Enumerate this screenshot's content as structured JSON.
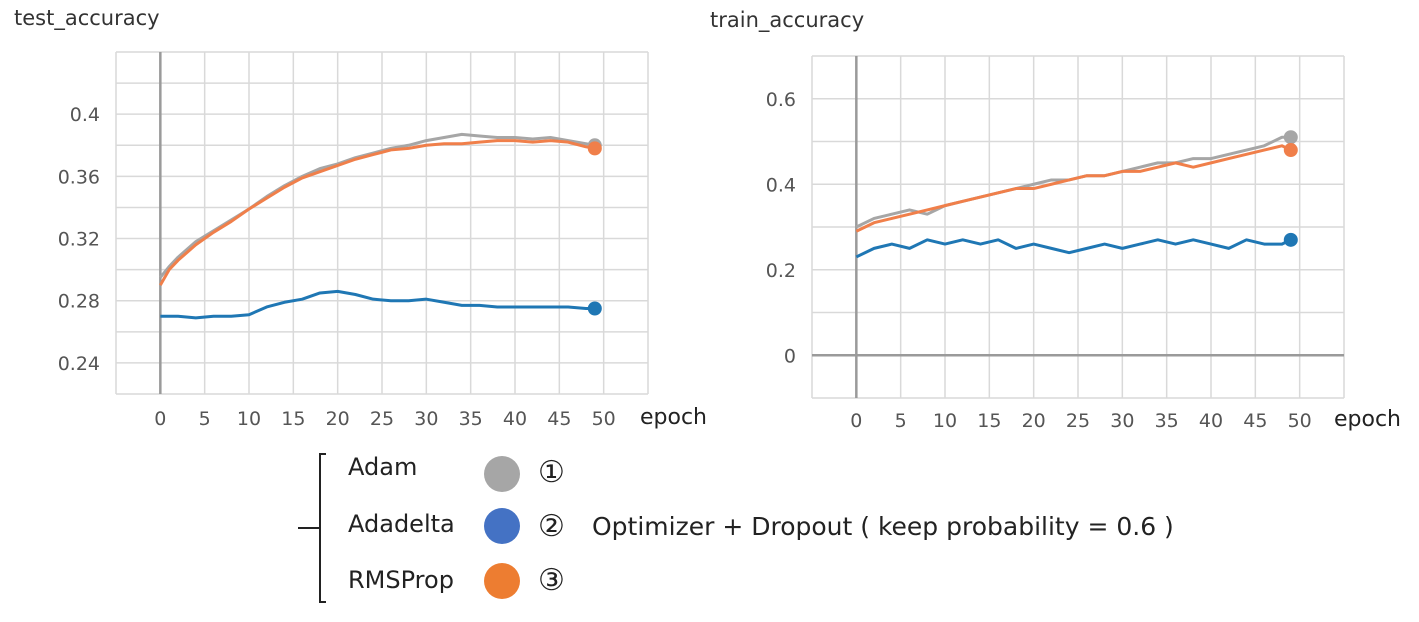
{
  "chart_data": [
    {
      "type": "line",
      "title": "test_accuracy",
      "xlabel": "epoch",
      "x_ticks": [
        0,
        5,
        10,
        15,
        20,
        25,
        30,
        35,
        40,
        45,
        50
      ],
      "y_ticks": [
        0.24,
        0.28,
        0.32,
        0.36,
        0.4
      ],
      "xlim": [
        -5,
        55
      ],
      "ylim": [
        0.22,
        0.44
      ],
      "x": [
        0,
        1,
        2,
        4,
        6,
        8,
        10,
        12,
        14,
        16,
        18,
        20,
        22,
        24,
        26,
        28,
        30,
        32,
        34,
        36,
        38,
        40,
        42,
        44,
        46,
        48,
        49
      ],
      "series": [
        {
          "name": "Adam",
          "color": "#a6a6a6",
          "values": [
            0.295,
            0.302,
            0.308,
            0.318,
            0.325,
            0.332,
            0.339,
            0.347,
            0.354,
            0.36,
            0.365,
            0.368,
            0.372,
            0.375,
            0.378,
            0.38,
            0.383,
            0.385,
            0.387,
            0.386,
            0.385,
            0.385,
            0.384,
            0.385,
            0.383,
            0.381,
            0.38
          ]
        },
        {
          "name": "Adadelta",
          "color": "#1f77b4",
          "values": [
            0.27,
            0.27,
            0.27,
            0.269,
            0.27,
            0.27,
            0.271,
            0.276,
            0.279,
            0.281,
            0.285,
            0.286,
            0.284,
            0.281,
            0.28,
            0.28,
            0.281,
            0.279,
            0.277,
            0.277,
            0.276,
            0.276,
            0.276,
            0.276,
            0.276,
            0.275,
            0.275
          ]
        },
        {
          "name": "RMSProp",
          "color": "#f07f4a",
          "values": [
            0.29,
            0.3,
            0.306,
            0.316,
            0.324,
            0.331,
            0.339,
            0.346,
            0.353,
            0.359,
            0.363,
            0.367,
            0.371,
            0.374,
            0.377,
            0.378,
            0.38,
            0.381,
            0.381,
            0.382,
            0.383,
            0.383,
            0.382,
            0.383,
            0.382,
            0.379,
            0.378
          ]
        }
      ]
    },
    {
      "type": "line",
      "title": "train_accuracy",
      "xlabel": "epoch",
      "x_ticks": [
        0,
        5,
        10,
        15,
        20,
        25,
        30,
        35,
        40,
        45,
        50
      ],
      "y_ticks": [
        0,
        0.2,
        0.4,
        0.6
      ],
      "xlim": [
        -5,
        55
      ],
      "ylim": [
        -0.1,
        0.7
      ],
      "x": [
        0,
        2,
        4,
        6,
        8,
        10,
        12,
        14,
        16,
        18,
        20,
        22,
        24,
        26,
        28,
        30,
        32,
        34,
        36,
        38,
        40,
        42,
        44,
        46,
        48,
        49
      ],
      "series": [
        {
          "name": "Adam",
          "color": "#a6a6a6",
          "values": [
            0.3,
            0.32,
            0.33,
            0.34,
            0.33,
            0.35,
            0.36,
            0.37,
            0.38,
            0.39,
            0.4,
            0.41,
            0.41,
            0.42,
            0.42,
            0.43,
            0.44,
            0.45,
            0.45,
            0.46,
            0.46,
            0.47,
            0.48,
            0.49,
            0.51,
            0.51
          ]
        },
        {
          "name": "Adadelta",
          "color": "#1f77b4",
          "values": [
            0.23,
            0.25,
            0.26,
            0.25,
            0.27,
            0.26,
            0.27,
            0.26,
            0.27,
            0.25,
            0.26,
            0.25,
            0.24,
            0.25,
            0.26,
            0.25,
            0.26,
            0.27,
            0.26,
            0.27,
            0.26,
            0.25,
            0.27,
            0.26,
            0.26,
            0.27
          ]
        },
        {
          "name": "RMSProp",
          "color": "#f07f4a",
          "values": [
            0.29,
            0.31,
            0.32,
            0.33,
            0.34,
            0.35,
            0.36,
            0.37,
            0.38,
            0.39,
            0.39,
            0.4,
            0.41,
            0.42,
            0.42,
            0.43,
            0.43,
            0.44,
            0.45,
            0.44,
            0.45,
            0.46,
            0.47,
            0.48,
            0.49,
            0.48
          ]
        }
      ]
    }
  ],
  "legend": {
    "items": [
      {
        "label": "Adam",
        "color": "#a6a6a6",
        "number": "①"
      },
      {
        "label": "Adadelta",
        "color": "#4472c4",
        "number": "②"
      },
      {
        "label": "RMSProp",
        "color": "#ed7d31",
        "number": "③"
      }
    ],
    "caption": "Optimizer + Dropout ( keep probability = 0.6 )"
  }
}
